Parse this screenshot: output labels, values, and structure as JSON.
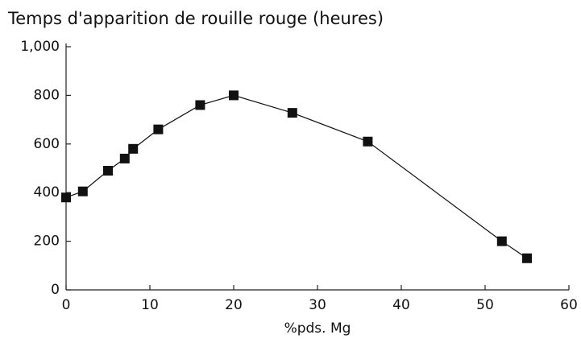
{
  "chart_data": {
    "type": "line",
    "title": "Temps d'apparition de rouille rouge (heures)",
    "x_label": "%pds. Mg",
    "x": [
      0,
      2,
      5,
      7,
      8,
      11,
      16,
      20,
      27,
      36,
      52,
      55
    ],
    "values": [
      380,
      405,
      490,
      540,
      580,
      660,
      760,
      800,
      728,
      610,
      200,
      130
    ],
    "color": "#111111",
    "xlim": [
      0,
      60
    ],
    "xticks": [
      0,
      10,
      20,
      30,
      40,
      50,
      60
    ],
    "ylim": [
      0,
      1000
    ],
    "yticks": [
      0,
      200,
      400,
      600,
      800,
      {
        "value": 1000,
        "label": "1,000"
      }
    ],
    "grid": false
  }
}
